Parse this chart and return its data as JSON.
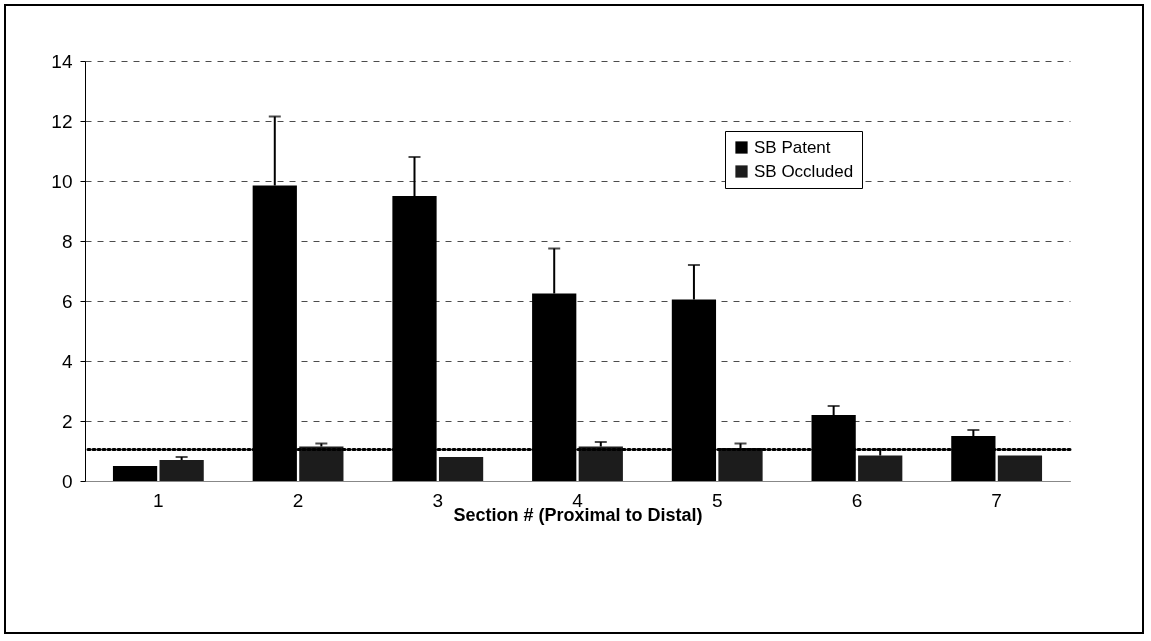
{
  "chart_data": {
    "type": "bar",
    "xlabel": "Section # (Proximal to Distal)",
    "categories": [
      "1",
      "2",
      "3",
      "4",
      "5",
      "6",
      "7"
    ],
    "series": [
      {
        "name": "SB Patent",
        "color": "#000000",
        "values": [
          0.5,
          9.85,
          9.5,
          6.25,
          6.05,
          2.2,
          1.5
        ],
        "errors": [
          null,
          [
            9.85,
            12.15
          ],
          [
            9.5,
            10.8
          ],
          [
            6.25,
            7.75
          ],
          [
            6.05,
            7.2
          ],
          [
            2.2,
            2.5
          ],
          [
            1.5,
            1.7
          ]
        ]
      },
      {
        "name": "SB Occluded",
        "color": "#1c1c1c",
        "values": [
          0.7,
          1.15,
          0.8,
          1.15,
          1.1,
          0.85,
          0.85
        ],
        "errors": [
          [
            0.7,
            0.8
          ],
          [
            1.15,
            1.25
          ],
          null,
          [
            1.15,
            1.3
          ],
          [
            1.1,
            1.25
          ],
          [
            0.85,
            1.05
          ],
          null
        ]
      }
    ],
    "ylim": [
      0,
      14
    ],
    "yticks": [
      0,
      2,
      4,
      6,
      8,
      10,
      12,
      14
    ],
    "ref_lines": [
      {
        "axis": "y",
        "value": 1.05,
        "color": "#000000",
        "line_style": "dotted"
      }
    ],
    "grid": "y",
    "legend": "top right"
  }
}
